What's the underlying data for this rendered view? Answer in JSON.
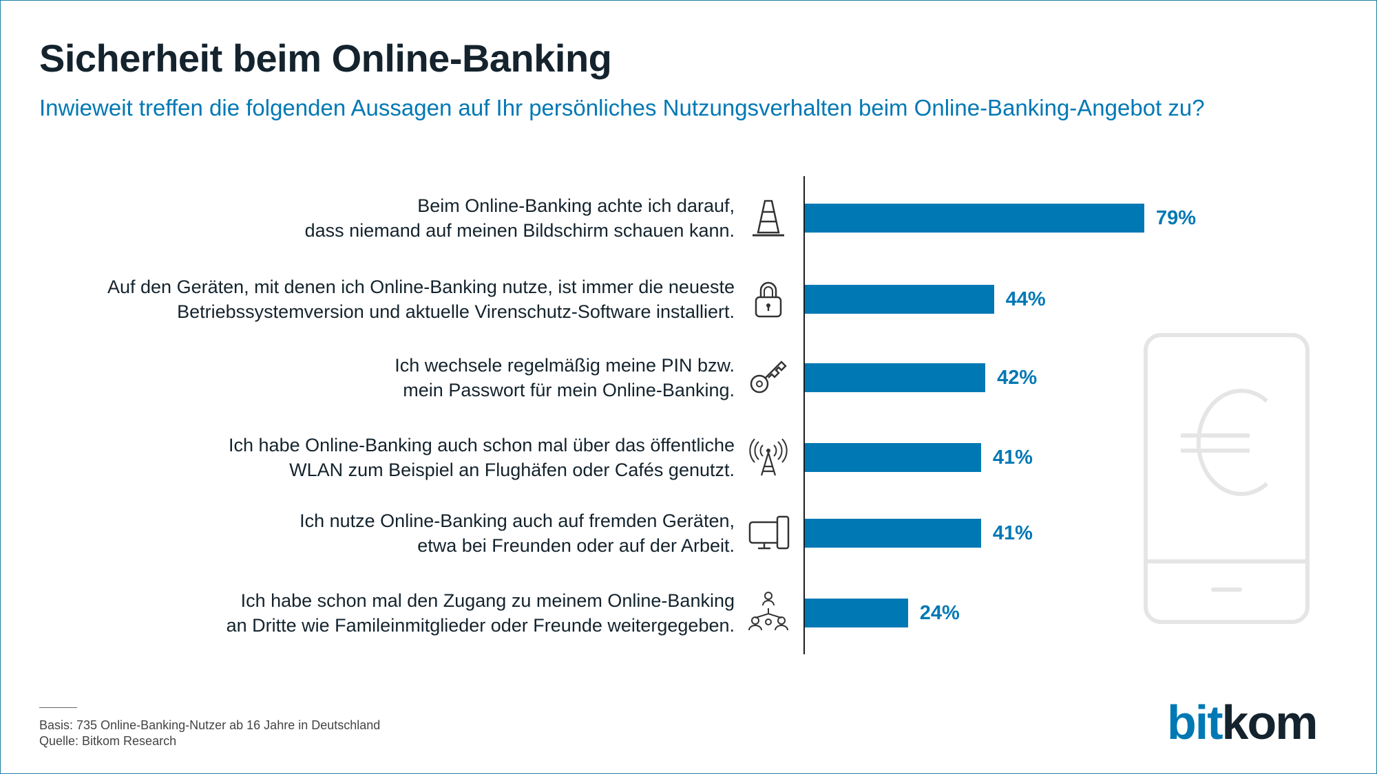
{
  "title": "Sicherheit beim Online-Banking",
  "subtitle": "Inwieweit treffen die folgenden Aussagen auf Ihr persönliches Nutzungsverhalten beim Online-Banking-Angebot zu?",
  "chart_data": {
    "type": "bar",
    "orientation": "horizontal",
    "categories": [
      [
        "Beim Online-Banking achte ich darauf,",
        "dass niemand auf meinen Bildschirm schauen kann."
      ],
      [
        "Auf den Geräten, mit denen ich Online-Banking nutze, ist immer die neueste",
        "Betriebssystemversion und aktuelle Virenschutz-Software installiert."
      ],
      [
        "Ich wechsele regelmäßig meine PIN bzw.",
        "mein Passwort für mein Online-Banking."
      ],
      [
        "Ich habe Online-Banking auch schon mal über das öffentliche",
        "WLAN zum Beispiel an Flughäfen oder Cafés genutzt."
      ],
      [
        "Ich nutze Online-Banking auch auf fremden Geräten,",
        "etwa bei Freunden oder auf der Arbeit."
      ],
      [
        "Ich habe schon mal den Zugang zu meinem Online-Banking",
        "an Dritte wie Famileinmitglieder oder Freunde weitergegeben."
      ]
    ],
    "values": [
      79,
      44,
      42,
      41,
      41,
      24
    ],
    "value_labels": [
      "79%",
      "44%",
      "42%",
      "41%",
      "41%",
      "24%"
    ],
    "icons": [
      "traffic-cone-icon",
      "padlock-icon",
      "key-icon",
      "wifi-antenna-icon",
      "devices-icon",
      "network-people-icon"
    ],
    "xlim": [
      0,
      100
    ],
    "unit": "%",
    "bar_color": "#0078b4",
    "grid": false,
    "legend": "none"
  },
  "footnote": {
    "basis": "Basis: 735 Online-Banking-Nutzer ab 16 Jahre in Deutschland",
    "source": "Quelle: Bitkom Research"
  },
  "logo": {
    "part1": "bit",
    "part2": "kom"
  },
  "decoration": {
    "phone_icon": "phone-euro-icon"
  },
  "colors": {
    "accent": "#0078b4",
    "text": "#14232d",
    "frame": "#1f7fa6",
    "decoration": "#e5e5e5"
  }
}
